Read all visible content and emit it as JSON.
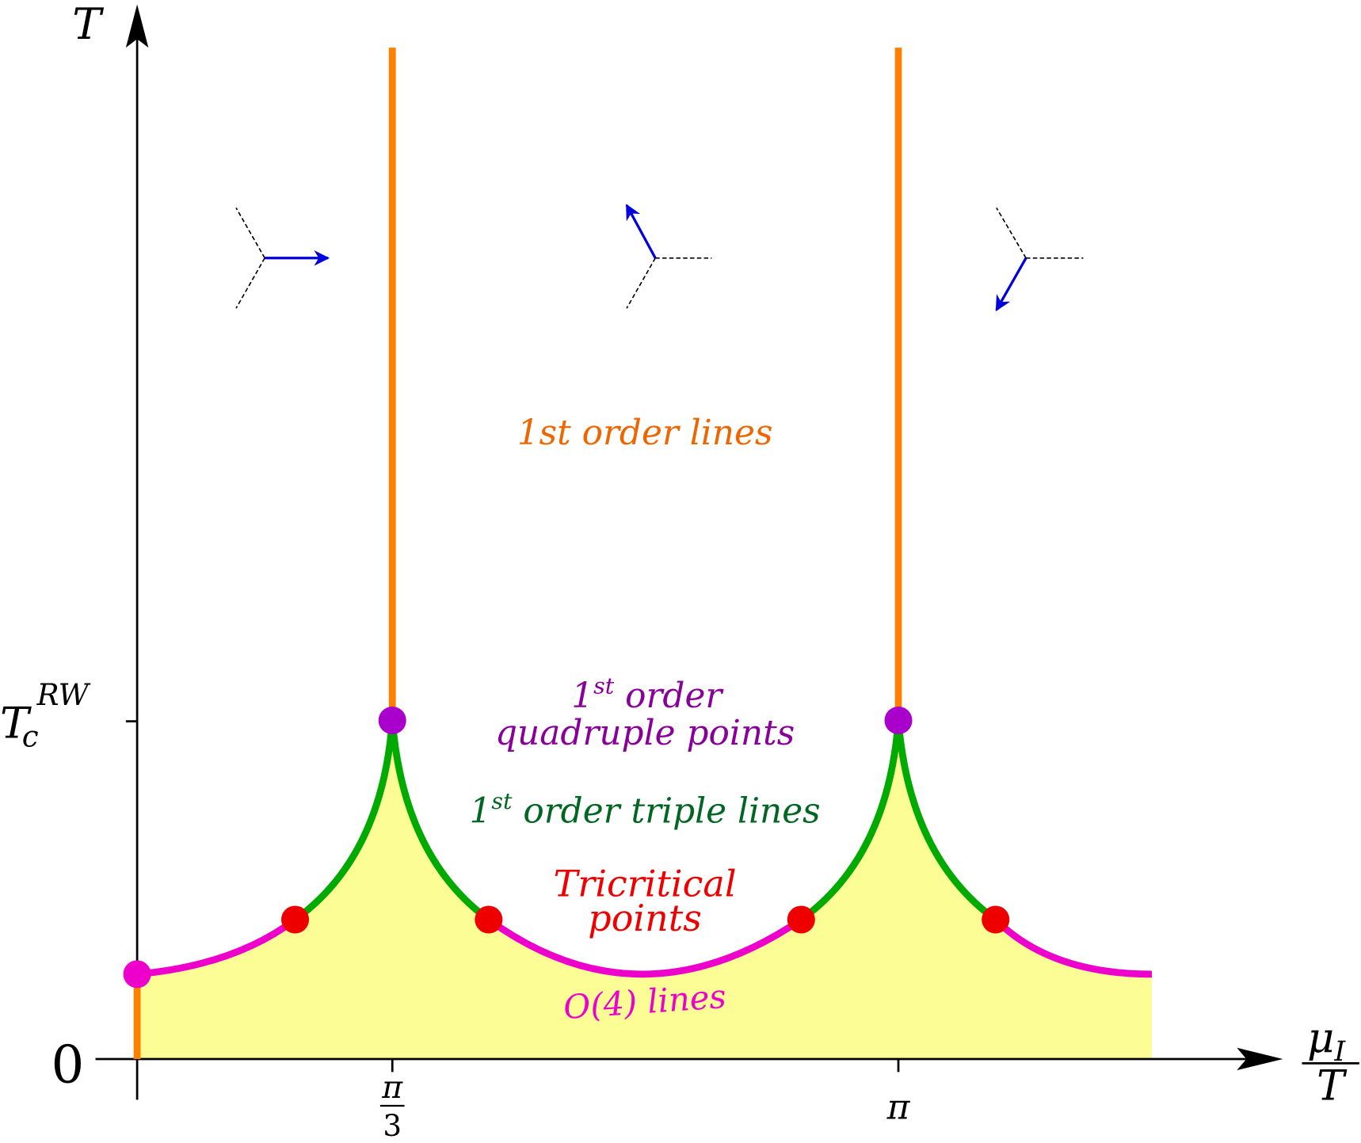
{
  "axes": {
    "y_label": "T",
    "x_label_num": "μ",
    "x_label_sub": "I",
    "x_label_den": "T",
    "y_ticks": [
      {
        "base": "T",
        "sub": "c",
        "sup": "RW"
      },
      "0"
    ],
    "x_ticks": [
      {
        "num": "π",
        "den": "3"
      },
      "π"
    ]
  },
  "labels": {
    "first_order_lines": "1st order lines",
    "quadruple": {
      "one": "1",
      "sup": "st",
      "rest": " order",
      "line2": "quadruple points"
    },
    "triple": {
      "one": "1",
      "sup": "st",
      "rest": " order triple lines"
    },
    "tricritical": {
      "line1": "Tricritical",
      "line2": "points"
    },
    "o4": "O(4) lines"
  }
}
